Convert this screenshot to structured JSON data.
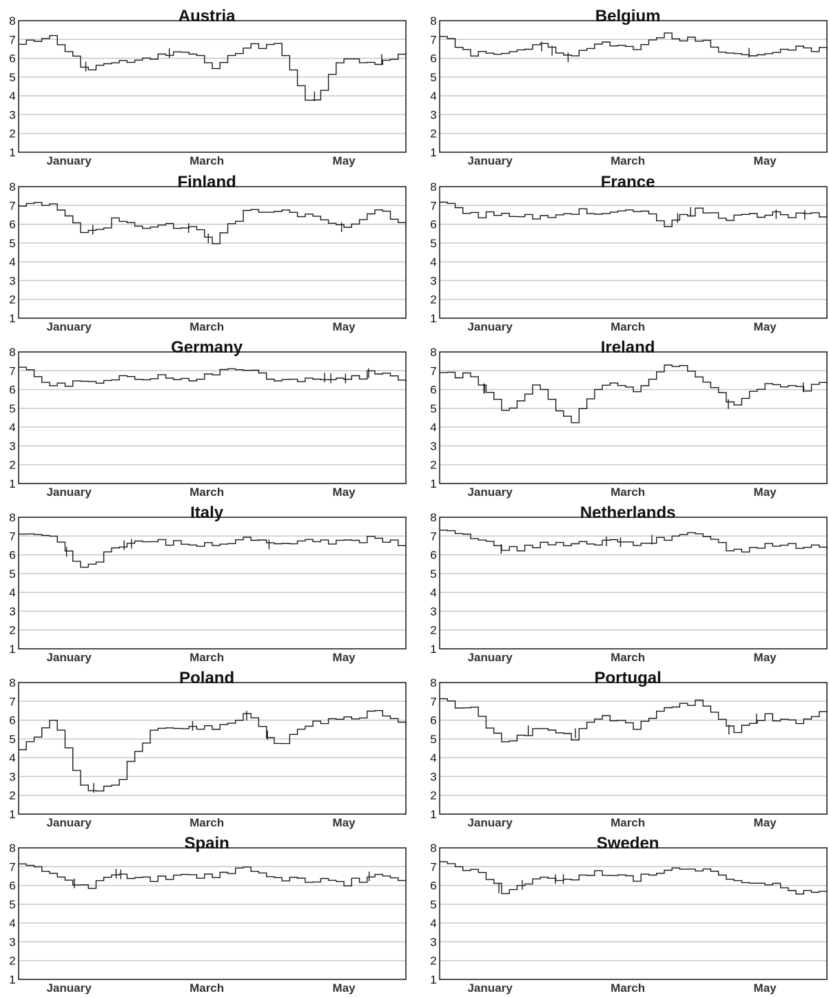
{
  "chart_data": [
    {
      "type": "line",
      "title": "Austria",
      "x_ticks": [
        "January",
        "March",
        "May"
      ],
      "ylim": [
        1,
        8
      ],
      "y_ticks": [
        1,
        2,
        3,
        4,
        5,
        6,
        7,
        8
      ],
      "grid": "horizontal",
      "x": [
        "Dec 1",
        "Dec 15",
        "Jan 1",
        "Jan 15",
        "Feb 1",
        "Feb 15",
        "Mar 1",
        "Mar 15",
        "Apr 1",
        "Apr 15",
        "May 1",
        "May 15",
        "Jun 1"
      ],
      "values": [
        6.7,
        7.1,
        5.5,
        5.8,
        5.9,
        6.4,
        5.6,
        6.6,
        6.7,
        3.5,
        6.1,
        5.8,
        6.3
      ]
    },
    {
      "type": "line",
      "title": "Belgium",
      "x_ticks": [
        "January",
        "March",
        "May"
      ],
      "ylim": [
        1,
        8
      ],
      "y_ticks": [
        1,
        2,
        3,
        4,
        5,
        6,
        7,
        8
      ],
      "grid": "horizontal",
      "x": [
        "Dec 1",
        "Dec 15",
        "Jan 1",
        "Jan 15",
        "Feb 1",
        "Feb 15",
        "Mar 1",
        "Mar 15",
        "Apr 1",
        "Apr 15",
        "May 1",
        "May 15",
        "Jun 1"
      ],
      "values": [
        7.1,
        6.2,
        6.3,
        6.7,
        6.0,
        6.8,
        6.6,
        7.2,
        6.9,
        6.2,
        6.3,
        6.6,
        6.4
      ]
    },
    {
      "type": "line",
      "title": "Finland",
      "x_ticks": [
        "January",
        "March",
        "May"
      ],
      "ylim": [
        1,
        8
      ],
      "y_ticks": [
        1,
        2,
        3,
        4,
        5,
        6,
        7,
        8
      ],
      "grid": "horizontal",
      "x": [
        "Dec 1",
        "Dec 15",
        "Jan 1",
        "Jan 15",
        "Feb 1",
        "Feb 15",
        "Mar 1",
        "Mar 15",
        "Apr 1",
        "Apr 15",
        "May 1",
        "May 15",
        "Jun 1"
      ],
      "values": [
        6.9,
        7.1,
        5.4,
        6.3,
        5.7,
        6.0,
        5.1,
        6.8,
        6.8,
        6.4,
        5.8,
        6.9,
        6.0
      ]
    },
    {
      "type": "line",
      "title": "France",
      "x_ticks": [
        "January",
        "March",
        "May"
      ],
      "ylim": [
        1,
        8
      ],
      "y_ticks": [
        1,
        2,
        3,
        4,
        5,
        6,
        7,
        8
      ],
      "grid": "horizontal",
      "x": [
        "Dec 1",
        "Dec 15",
        "Jan 1",
        "Jan 15",
        "Feb 1",
        "Feb 15",
        "Mar 1",
        "Mar 15",
        "Apr 1",
        "Apr 15",
        "May 1",
        "May 15",
        "Jun 1"
      ],
      "values": [
        7.1,
        6.5,
        6.5,
        6.4,
        6.7,
        6.6,
        6.8,
        6.0,
        6.8,
        6.3,
        6.5,
        6.5,
        6.4
      ]
    },
    {
      "type": "line",
      "title": "Germany",
      "x_ticks": [
        "January",
        "March",
        "May"
      ],
      "ylim": [
        1,
        8
      ],
      "y_ticks": [
        1,
        2,
        3,
        4,
        5,
        6,
        7,
        8
      ],
      "grid": "horizontal",
      "x": [
        "Dec 1",
        "Dec 15",
        "Jan 1",
        "Jan 15",
        "Feb 1",
        "Feb 15",
        "Mar 1",
        "Mar 15",
        "Apr 1",
        "Apr 15",
        "May 1",
        "May 15",
        "Jun 1"
      ],
      "values": [
        7.1,
        6.3,
        6.3,
        6.6,
        6.7,
        6.5,
        6.9,
        7.0,
        6.4,
        6.7,
        6.5,
        6.9,
        6.3
      ]
    },
    {
      "type": "line",
      "title": "Ireland",
      "x_ticks": [
        "January",
        "March",
        "May"
      ],
      "ylim": [
        1,
        8
      ],
      "y_ticks": [
        1,
        2,
        3,
        4,
        5,
        6,
        7,
        8
      ],
      "grid": "horizontal",
      "x": [
        "Dec 1",
        "Dec 15",
        "Jan 1",
        "Jan 15",
        "Feb 1",
        "Feb 15",
        "Mar 1",
        "Mar 15",
        "Apr 1",
        "Apr 15",
        "May 1",
        "May 15",
        "Jun 1"
      ],
      "values": [
        6.8,
        6.7,
        4.9,
        6.4,
        4.1,
        6.4,
        6.0,
        7.5,
        6.7,
        5.1,
        6.3,
        6.0,
        6.3
      ]
    },
    {
      "type": "line",
      "title": "Italy",
      "x_ticks": [
        "January",
        "March",
        "May"
      ],
      "ylim": [
        1,
        8
      ],
      "y_ticks": [
        1,
        2,
        3,
        4,
        5,
        6,
        7,
        8
      ],
      "grid": "horizontal",
      "x": [
        "Dec 1",
        "Dec 15",
        "Jan 1",
        "Jan 15",
        "Feb 1",
        "Feb 15",
        "Mar 1",
        "Mar 15",
        "Apr 1",
        "Apr 15",
        "May 1",
        "May 15",
        "Jun 1"
      ],
      "values": [
        7.0,
        6.9,
        5.3,
        6.4,
        6.7,
        6.6,
        6.6,
        6.9,
        6.4,
        6.7,
        6.7,
        6.9,
        6.5
      ]
    },
    {
      "type": "line",
      "title": "Netherlands",
      "x_ticks": [
        "January",
        "March",
        "May"
      ],
      "ylim": [
        1,
        8
      ],
      "y_ticks": [
        1,
        2,
        3,
        4,
        5,
        6,
        7,
        8
      ],
      "grid": "horizontal",
      "x": [
        "Dec 1",
        "Dec 15",
        "Jan 1",
        "Jan 15",
        "Feb 1",
        "Feb 15",
        "Mar 1",
        "Mar 15",
        "Apr 1",
        "Apr 15",
        "May 1",
        "May 15",
        "Jun 1"
      ],
      "values": [
        7.2,
        7.0,
        6.2,
        6.6,
        6.5,
        6.7,
        6.6,
        6.9,
        7.1,
        6.2,
        6.5,
        6.5,
        6.4
      ]
    },
    {
      "type": "line",
      "title": "Poland",
      "x_ticks": [
        "January",
        "March",
        "May"
      ],
      "ylim": [
        1,
        8
      ],
      "y_ticks": [
        1,
        2,
        3,
        4,
        5,
        6,
        7,
        8
      ],
      "grid": "horizontal",
      "x": [
        "Dec 1",
        "Dec 15",
        "Jan 1",
        "Jan 15",
        "Feb 1",
        "Feb 15",
        "Mar 1",
        "Mar 15",
        "Apr 1",
        "Apr 15",
        "May 1",
        "May 15",
        "Jun 1"
      ],
      "values": [
        4.3,
        6.1,
        2.2,
        2.7,
        5.3,
        5.7,
        5.6,
        6.3,
        4.7,
        5.8,
        6.0,
        6.5,
        5.6
      ]
    },
    {
      "type": "line",
      "title": "Portugal",
      "x_ticks": [
        "January",
        "March",
        "May"
      ],
      "ylim": [
        1,
        8
      ],
      "y_ticks": [
        1,
        2,
        3,
        4,
        5,
        6,
        7,
        8
      ],
      "grid": "horizontal",
      "x": [
        "Dec 1",
        "Dec 15",
        "Jan 1",
        "Jan 15",
        "Feb 1",
        "Feb 15",
        "Mar 1",
        "Mar 15",
        "Apr 1",
        "Apr 15",
        "May 1",
        "May 15",
        "Jun 1"
      ],
      "values": [
        7.0,
        6.6,
        4.6,
        5.7,
        5.0,
        6.3,
        5.6,
        6.8,
        6.9,
        5.4,
        6.2,
        5.9,
        6.4
      ]
    },
    {
      "type": "line",
      "title": "Spain",
      "x_ticks": [
        "January",
        "March",
        "May"
      ],
      "ylim": [
        1,
        8
      ],
      "y_ticks": [
        1,
        2,
        3,
        4,
        5,
        6,
        7,
        8
      ],
      "grid": "horizontal",
      "x": [
        "Dec 1",
        "Dec 15",
        "Jan 1",
        "Jan 15",
        "Feb 1",
        "Feb 15",
        "Mar 1",
        "Mar 15",
        "Apr 1",
        "Apr 15",
        "May 1",
        "May 15",
        "Jun 1"
      ],
      "values": [
        7.0,
        6.8,
        5.8,
        6.6,
        6.3,
        6.5,
        6.5,
        6.9,
        6.3,
        6.3,
        6.1,
        6.5,
        6.3
      ]
    },
    {
      "type": "line",
      "title": "Sweden",
      "x_ticks": [
        "January",
        "March",
        "May"
      ],
      "ylim": [
        1,
        8
      ],
      "y_ticks": [
        1,
        2,
        3,
        4,
        5,
        6,
        7,
        8
      ],
      "grid": "horizontal",
      "x": [
        "Dec 1",
        "Dec 15",
        "Jan 1",
        "Jan 15",
        "Feb 1",
        "Feb 15",
        "Mar 1",
        "Mar 15",
        "Apr 1",
        "Apr 15",
        "May 1",
        "May 15",
        "Jun 1"
      ],
      "values": [
        7.1,
        6.9,
        5.6,
        6.3,
        6.3,
        6.7,
        6.3,
        6.9,
        6.8,
        6.3,
        6.2,
        5.6,
        5.7
      ]
    }
  ]
}
